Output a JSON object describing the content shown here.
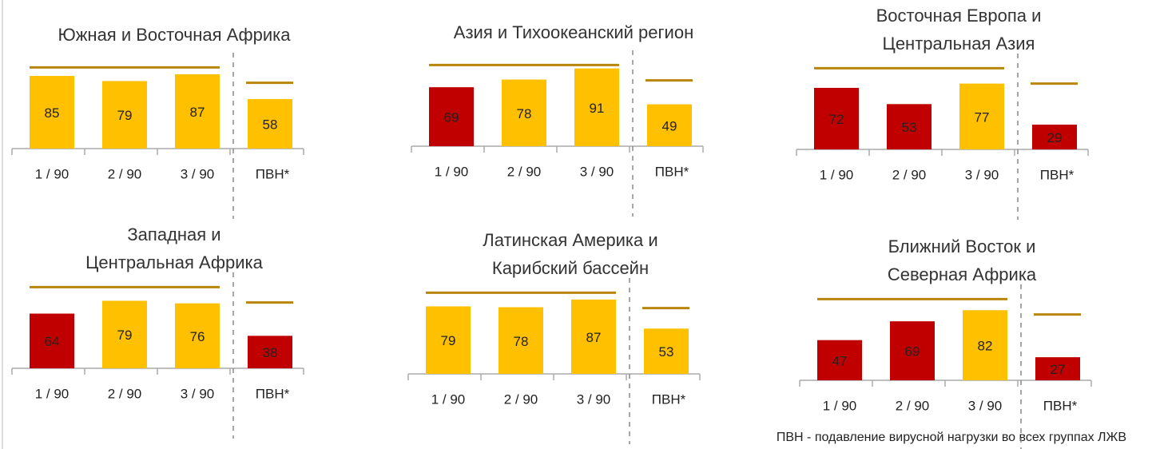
{
  "chart_data": [
    {
      "type": "bar",
      "title": [
        "Южная и Восточная Африка"
      ],
      "categories": [
        "1 / 90",
        "2 / 90",
        "3 / 90",
        "ПВН*"
      ],
      "values": [
        85,
        79,
        87,
        58
      ],
      "colors": [
        "#ffc000",
        "#ffc000",
        "#ffc000",
        "#ffc000"
      ],
      "ylim": [
        0,
        100
      ],
      "reference_lines": [
        95,
        77
      ]
    },
    {
      "type": "bar",
      "title": [
        "Азия и Тихоокеанский регион"
      ],
      "categories": [
        "1 / 90",
        "2 / 90",
        "3 / 90",
        "ПВН*"
      ],
      "values": [
        69,
        78,
        91,
        49
      ],
      "colors": [
        "#c00000",
        "#ffc000",
        "#ffc000",
        "#ffc000"
      ],
      "ylim": [
        0,
        100
      ],
      "reference_lines": [
        95,
        77
      ]
    },
    {
      "type": "bar",
      "title": [
        "Восточная Европа и",
        "Центральная Азия"
      ],
      "categories": [
        "1 / 90",
        "2 / 90",
        "3 / 90",
        "ПВН*"
      ],
      "values": [
        72,
        53,
        77,
        29
      ],
      "colors": [
        "#c00000",
        "#c00000",
        "#ffc000",
        "#c00000"
      ],
      "ylim": [
        0,
        100
      ],
      "reference_lines": [
        95,
        77
      ]
    },
    {
      "type": "bar",
      "title": [
        "Западная и",
        "Центральная Африка"
      ],
      "categories": [
        "1 / 90",
        "2 / 90",
        "3 / 90",
        "ПВН*"
      ],
      "values": [
        64,
        79,
        76,
        38
      ],
      "colors": [
        "#c00000",
        "#ffc000",
        "#ffc000",
        "#c00000"
      ],
      "ylim": [
        0,
        100
      ],
      "reference_lines": [
        95,
        77
      ]
    },
    {
      "type": "bar",
      "title": [
        "Латинская Америка и",
        "Карибский бассейн"
      ],
      "categories": [
        "1 / 90",
        "2 / 90",
        "3 / 90",
        "ПВН*"
      ],
      "values": [
        79,
        78,
        87,
        53
      ],
      "colors": [
        "#ffc000",
        "#ffc000",
        "#ffc000",
        "#ffc000"
      ],
      "ylim": [
        0,
        100
      ],
      "reference_lines": [
        95,
        77
      ]
    },
    {
      "type": "bar",
      "title": [
        "Ближний Восток и",
        "Северная Африка"
      ],
      "categories": [
        "1 / 90",
        "2 / 90",
        "3 / 90",
        "ПВН*"
      ],
      "values": [
        47,
        69,
        82,
        27
      ],
      "colors": [
        "#c00000",
        "#c00000",
        "#ffc000",
        "#c00000"
      ],
      "ylim": [
        0,
        100
      ],
      "reference_lines": [
        95,
        77
      ]
    }
  ],
  "footnote": "ПВН - подавление вирусной нагрузки во всех группах ЛЖВ"
}
